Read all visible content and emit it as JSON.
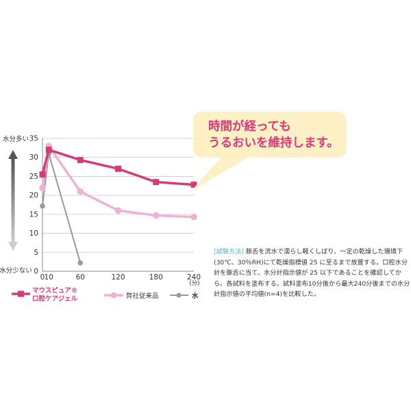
{
  "chart_data": {
    "type": "line",
    "x": [
      0,
      10,
      60,
      120,
      180,
      240
    ],
    "x_tick_labels": [
      "0",
      "10",
      "60",
      "120",
      "180",
      "240"
    ],
    "x_unit": "(分)",
    "y_ticks": [
      0,
      5,
      10,
      15,
      20,
      25,
      30,
      35
    ],
    "ylim": [
      0,
      35
    ],
    "ylabel_top": "水分多い",
    "ylabel_bottom": "水分少ない",
    "grid": true,
    "series": [
      {
        "name_line1": "マウスピュア®",
        "name_line2": "口腔ケアジェル",
        "color": "#d63a7b",
        "marker": "square",
        "x": [
          0,
          10,
          60,
          120,
          180,
          240
        ],
        "y": [
          25.5,
          32,
          29.3,
          27,
          23.5,
          22.8
        ]
      },
      {
        "name": "弊社従来品",
        "color": "#f0b2d2",
        "marker": "circle",
        "x": [
          0,
          10,
          60,
          120,
          180,
          240
        ],
        "y": [
          22,
          33,
          21,
          16,
          14.7,
          14.3
        ]
      },
      {
        "name": "水",
        "color": "#999999",
        "marker": "circle",
        "x": [
          0,
          10,
          60
        ],
        "y": [
          17.2,
          31,
          2.2
        ]
      }
    ],
    "annotation": {
      "line1": "時間が経っても",
      "line2": "うるおいを維持します。"
    }
  },
  "method": {
    "tag": "[試験方法]",
    "body": "豚舌を流水で濡らし軽くしぼり、一定の乾燥した環境下(30℃、30％RH)にて乾燥指標値 25 に至るまで放置する。口腔水分計を豚舌に当て、水分計指示値が 25 以下であることを確認してから、各試料を塗布する。試料塗布10分後から最大240分後までの水分計指示値の平均値(n=4)を比較した。"
  }
}
